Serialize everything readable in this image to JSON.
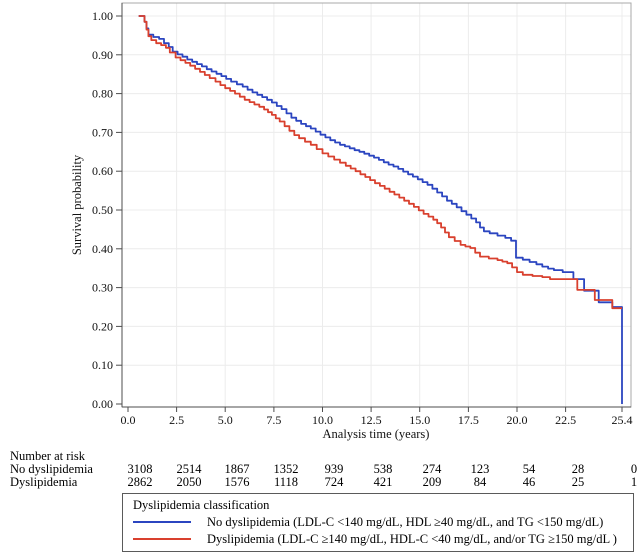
{
  "chart_data": {
    "type": "line",
    "subtype": "kaplan-meier-step",
    "title": "",
    "xlabel": "Analysis time (years)",
    "ylabel": "Survival probability",
    "xlim": [
      0,
      25.4
    ],
    "ylim": [
      0.0,
      1.0
    ],
    "grid": true,
    "legend_position": "bottom",
    "x_ticks": [
      0.0,
      2.5,
      5.0,
      7.5,
      10.0,
      12.5,
      15.0,
      17.5,
      20.0,
      22.5,
      25.4
    ],
    "x_tick_labels": [
      "0.0",
      "2.5",
      "5.0",
      "7.5",
      "10.0",
      "12.5",
      "15.0",
      "17.5",
      "20.0",
      "22.5",
      "25.4"
    ],
    "y_ticks": [
      0.0,
      0.1,
      0.2,
      0.3,
      0.4,
      0.5,
      0.6,
      0.7,
      0.8,
      0.9,
      1.0
    ],
    "y_tick_labels": [
      "0.00",
      "0.10",
      "0.20",
      "0.30",
      "0.40",
      "0.50",
      "0.60",
      "0.70",
      "0.80",
      "0.90",
      "1.00"
    ],
    "series": [
      {
        "id": "no-dyslipidemia",
        "name": "No dyslipidemia",
        "color": "#2b45c0",
        "points": [
          [
            0.55,
            1.0
          ],
          [
            0.85,
            0.985
          ],
          [
            0.95,
            0.968
          ],
          [
            1.05,
            0.952
          ],
          [
            1.3,
            0.946
          ],
          [
            1.6,
            0.941
          ],
          [
            1.85,
            0.93
          ],
          [
            2.1,
            0.92
          ],
          [
            2.3,
            0.908
          ],
          [
            2.55,
            0.901
          ],
          [
            2.8,
            0.895
          ],
          [
            3.05,
            0.888
          ],
          [
            3.3,
            0.882
          ],
          [
            3.55,
            0.876
          ],
          [
            3.8,
            0.87
          ],
          [
            4.05,
            0.863
          ],
          [
            4.3,
            0.857
          ],
          [
            4.55,
            0.851
          ],
          [
            4.8,
            0.845
          ],
          [
            5.05,
            0.838
          ],
          [
            5.3,
            0.831
          ],
          [
            5.6,
            0.824
          ],
          [
            5.9,
            0.818
          ],
          [
            6.15,
            0.81
          ],
          [
            6.4,
            0.803
          ],
          [
            6.65,
            0.797
          ],
          [
            6.9,
            0.791
          ],
          [
            7.15,
            0.784
          ],
          [
            7.4,
            0.777
          ],
          [
            7.65,
            0.768
          ],
          [
            7.9,
            0.76
          ],
          [
            8.15,
            0.749
          ],
          [
            8.4,
            0.738
          ],
          [
            8.65,
            0.73
          ],
          [
            8.9,
            0.722
          ],
          [
            9.15,
            0.716
          ],
          [
            9.4,
            0.71
          ],
          [
            9.65,
            0.702
          ],
          [
            9.9,
            0.694
          ],
          [
            10.15,
            0.687
          ],
          [
            10.4,
            0.68
          ],
          [
            10.65,
            0.674
          ],
          [
            10.9,
            0.668
          ],
          [
            11.15,
            0.664
          ],
          [
            11.4,
            0.659
          ],
          [
            11.65,
            0.654
          ],
          [
            11.9,
            0.65
          ],
          [
            12.15,
            0.645
          ],
          [
            12.4,
            0.64
          ],
          [
            12.65,
            0.635
          ],
          [
            12.9,
            0.629
          ],
          [
            13.15,
            0.623
          ],
          [
            13.4,
            0.617
          ],
          [
            13.65,
            0.612
          ],
          [
            13.9,
            0.606
          ],
          [
            14.15,
            0.599
          ],
          [
            14.4,
            0.592
          ],
          [
            14.65,
            0.586
          ],
          [
            14.9,
            0.579
          ],
          [
            15.15,
            0.572
          ],
          [
            15.4,
            0.565
          ],
          [
            15.65,
            0.555
          ],
          [
            15.9,
            0.545
          ],
          [
            16.15,
            0.535
          ],
          [
            16.4,
            0.524
          ],
          [
            16.65,
            0.516
          ],
          [
            16.9,
            0.507
          ],
          [
            17.15,
            0.497
          ],
          [
            17.4,
            0.488
          ],
          [
            17.65,
            0.478
          ],
          [
            17.9,
            0.468
          ],
          [
            18.1,
            0.455
          ],
          [
            18.3,
            0.445
          ],
          [
            18.6,
            0.44
          ],
          [
            19.0,
            0.434
          ],
          [
            19.4,
            0.428
          ],
          [
            19.7,
            0.421
          ],
          [
            19.95,
            0.377
          ],
          [
            20.3,
            0.372
          ],
          [
            20.65,
            0.366
          ],
          [
            21.0,
            0.36
          ],
          [
            21.3,
            0.354
          ],
          [
            21.6,
            0.349
          ],
          [
            21.9,
            0.345
          ],
          [
            22.35,
            0.34
          ],
          [
            22.9,
            0.322
          ],
          [
            23.45,
            0.292
          ],
          [
            24.2,
            0.262
          ],
          [
            24.9,
            0.25
          ],
          [
            25.4,
            0.0
          ]
        ]
      },
      {
        "id": "dyslipidemia",
        "name": "Dyslipidemia",
        "color": "#d9402e",
        "points": [
          [
            0.55,
            1.0
          ],
          [
            0.85,
            0.985
          ],
          [
            0.95,
            0.965
          ],
          [
            1.05,
            0.948
          ],
          [
            1.2,
            0.938
          ],
          [
            1.45,
            0.93
          ],
          [
            1.7,
            0.925
          ],
          [
            1.95,
            0.918
          ],
          [
            2.15,
            0.906
          ],
          [
            2.45,
            0.893
          ],
          [
            2.7,
            0.886
          ],
          [
            2.95,
            0.879
          ],
          [
            3.2,
            0.872
          ],
          [
            3.45,
            0.864
          ],
          [
            3.7,
            0.856
          ],
          [
            3.95,
            0.848
          ],
          [
            4.2,
            0.84
          ],
          [
            4.5,
            0.831
          ],
          [
            4.75,
            0.822
          ],
          [
            5.0,
            0.814
          ],
          [
            5.25,
            0.807
          ],
          [
            5.5,
            0.8
          ],
          [
            5.75,
            0.792
          ],
          [
            6.0,
            0.784
          ],
          [
            6.25,
            0.778
          ],
          [
            6.5,
            0.772
          ],
          [
            6.75,
            0.766
          ],
          [
            7.0,
            0.759
          ],
          [
            7.2,
            0.752
          ],
          [
            7.4,
            0.745
          ],
          [
            7.6,
            0.736
          ],
          [
            7.8,
            0.728
          ],
          [
            8.05,
            0.716
          ],
          [
            8.3,
            0.704
          ],
          [
            8.55,
            0.693
          ],
          [
            8.8,
            0.685
          ],
          [
            9.1,
            0.676
          ],
          [
            9.4,
            0.668
          ],
          [
            9.7,
            0.657
          ],
          [
            10.0,
            0.646
          ],
          [
            10.3,
            0.638
          ],
          [
            10.6,
            0.63
          ],
          [
            10.9,
            0.622
          ],
          [
            11.2,
            0.614
          ],
          [
            11.45,
            0.607
          ],
          [
            11.7,
            0.6
          ],
          [
            11.95,
            0.592
          ],
          [
            12.2,
            0.585
          ],
          [
            12.45,
            0.577
          ],
          [
            12.7,
            0.569
          ],
          [
            12.95,
            0.562
          ],
          [
            13.2,
            0.555
          ],
          [
            13.45,
            0.547
          ],
          [
            13.7,
            0.54
          ],
          [
            13.95,
            0.532
          ],
          [
            14.2,
            0.524
          ],
          [
            14.45,
            0.516
          ],
          [
            14.7,
            0.508
          ],
          [
            14.95,
            0.499
          ],
          [
            15.2,
            0.49
          ],
          [
            15.45,
            0.483
          ],
          [
            15.7,
            0.475
          ],
          [
            15.9,
            0.466
          ],
          [
            16.1,
            0.455
          ],
          [
            16.3,
            0.442
          ],
          [
            16.5,
            0.43
          ],
          [
            16.8,
            0.42
          ],
          [
            17.1,
            0.41
          ],
          [
            17.35,
            0.406
          ],
          [
            17.6,
            0.402
          ],
          [
            17.85,
            0.39
          ],
          [
            18.1,
            0.38
          ],
          [
            18.55,
            0.375
          ],
          [
            19.0,
            0.371
          ],
          [
            19.25,
            0.367
          ],
          [
            19.5,
            0.363
          ],
          [
            19.75,
            0.352
          ],
          [
            20.0,
            0.34
          ],
          [
            20.3,
            0.333
          ],
          [
            20.8,
            0.33
          ],
          [
            21.3,
            0.327
          ],
          [
            21.7,
            0.322
          ],
          [
            23.1,
            0.294
          ],
          [
            24.0,
            0.268
          ],
          [
            24.9,
            0.247
          ],
          [
            25.4,
            0.247
          ]
        ]
      }
    ]
  },
  "risk_table": {
    "title": "Number at risk",
    "rows": [
      {
        "label": "No dyslipidemia",
        "values": [
          "3108",
          "2514",
          "1867",
          "1352",
          "939",
          "538",
          "274",
          "123",
          "54",
          "28",
          "0"
        ]
      },
      {
        "label": "Dyslipidemia",
        "values": [
          "2862",
          "2050",
          "1576",
          "1118",
          "724",
          "421",
          "209",
          "84",
          "46",
          "25",
          "1"
        ]
      }
    ]
  },
  "legend": {
    "title": "Dyslipidemia classification",
    "entries": [
      {
        "label": "No dyslipidemia (LDL-C <140 mg/dL, HDL ≥40 mg/dL, and TG <150 mg/dL)",
        "color": "#2b45c0"
      },
      {
        "label": "Dyslipidemia (LDL-C ≥140 mg/dL, HDL-C <40 mg/dL, and/or TG ≥150 mg/dL )",
        "color": "#d9402e"
      }
    ]
  },
  "colors": {
    "grid": "#ececec",
    "frame": "#a8a8a8",
    "axis": "#4d4d4d",
    "background": "#ffffff"
  }
}
